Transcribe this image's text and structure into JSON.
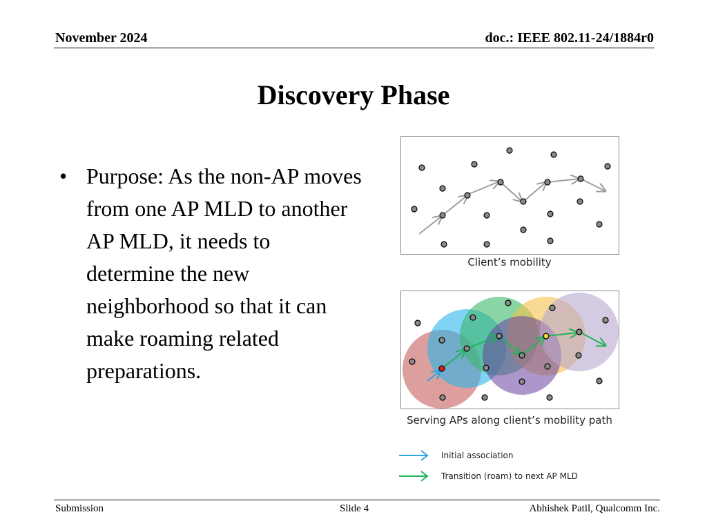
{
  "header": {
    "date": "November 2024",
    "doc": "doc.: IEEE 802.11-24/1884r0"
  },
  "title": "Discovery Phase",
  "bullet": {
    "marker": "•",
    "text": "Purpose: As the non-AP moves from one AP MLD to another AP MLD, it needs to determine the new neighborhood so that it can make roaming related preparations."
  },
  "figure1": {
    "caption": "Client’s mobility"
  },
  "figure2": {
    "caption": "Serving APs along client’s mobility path"
  },
  "legend": {
    "initial": "Initial association",
    "transition": "Transition (roam) to next AP MLD"
  },
  "colors": {
    "initial": "#2aa6e0",
    "transition": "#1fb35a",
    "path": "#9e9e9e",
    "dot": "#8a8a8a"
  },
  "footer": {
    "left": "Submission",
    "center": "Slide 4",
    "right": "Abhishek Patil, Qualcomm Inc."
  }
}
